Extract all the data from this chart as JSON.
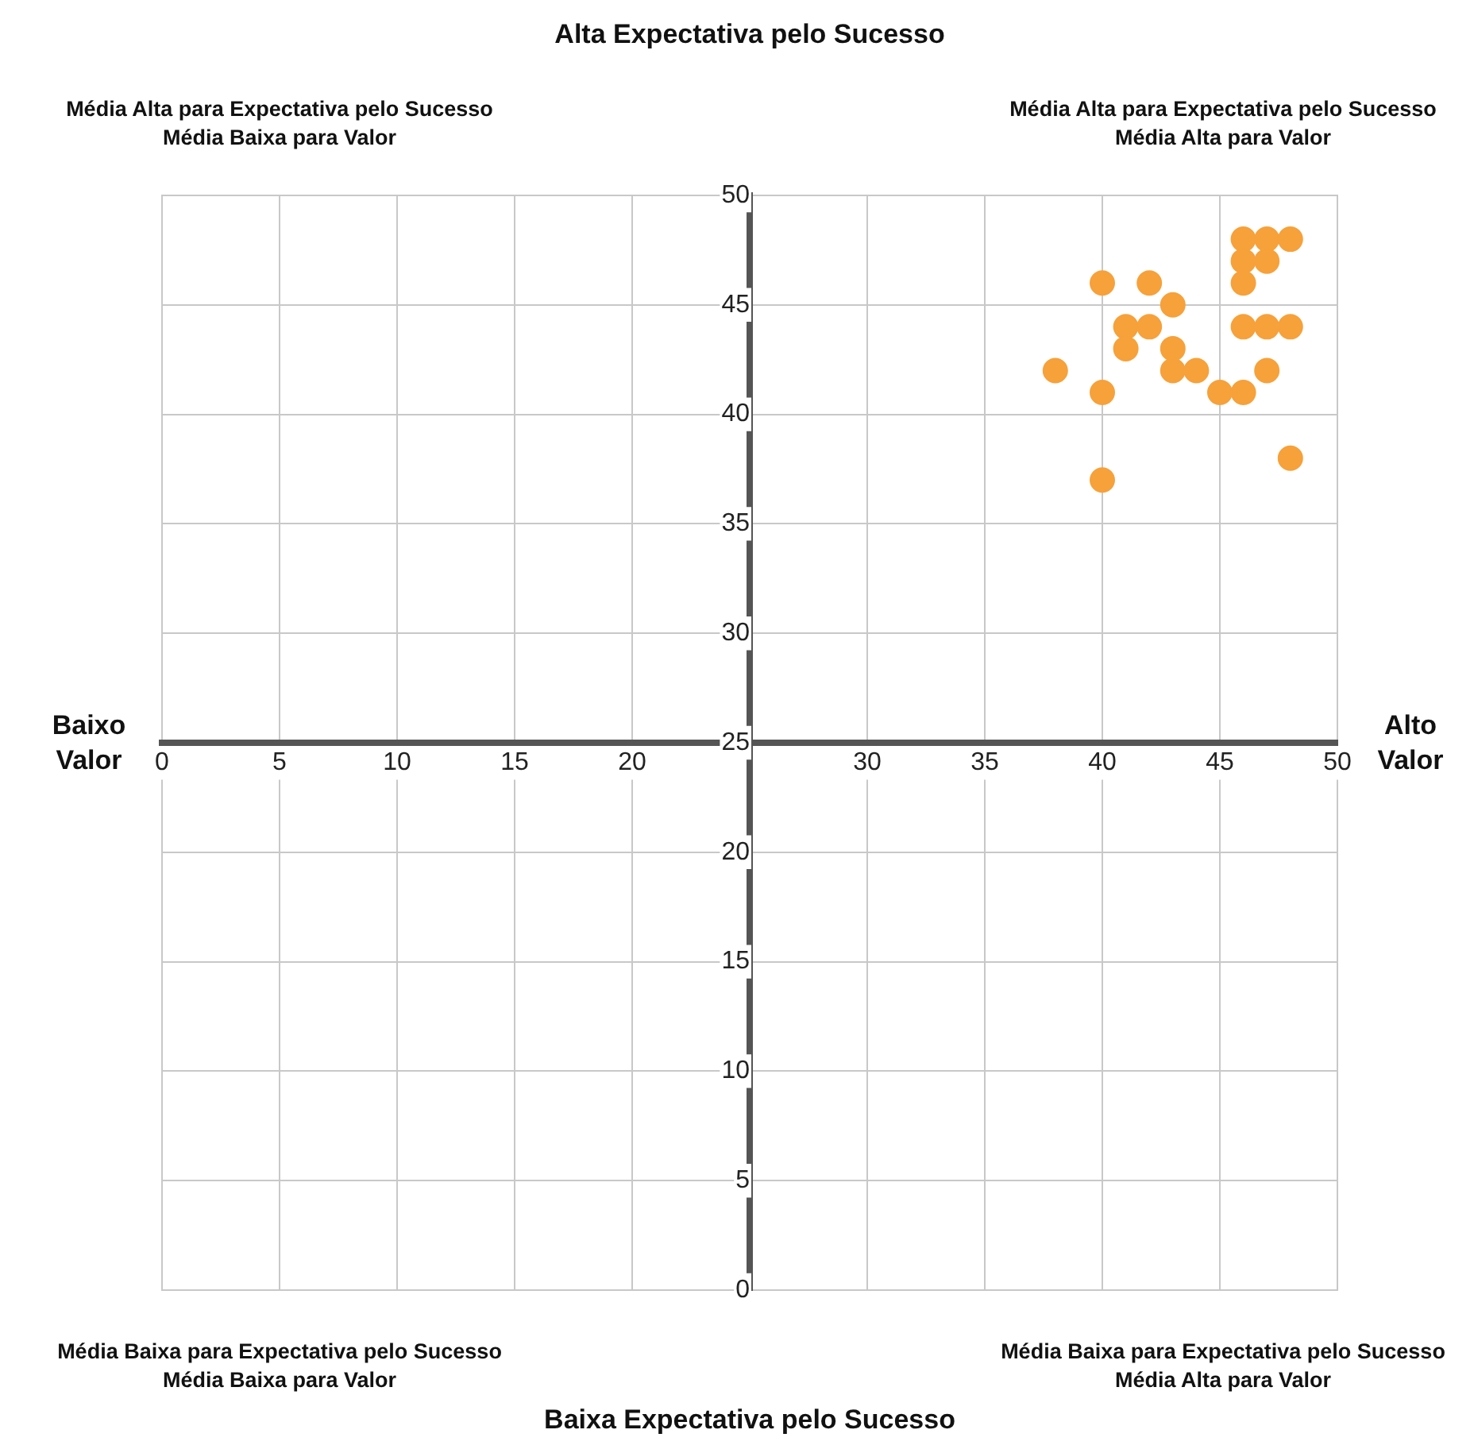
{
  "chart_data": {
    "type": "scatter",
    "title": "Alta Expectativa pelo Sucesso",
    "xlabel": "Baixa Expectativa pelo Sucesso",
    "annotations": [
      "Média Alta para Expectativa pelo Sucesso\nMédia Baixa para Valor",
      "Média Alta para Expectativa pelo Sucesso\nMédia Alta para Valor",
      "Média Baixa para Expectativa pelo Sucesso\nMédia Baixa para Valor",
      "Média Baixa para Expectativa pelo Sucesso\nMédia Alta para Valor",
      "Baixo\nValor",
      "Alto\nValor"
    ],
    "x": [
      38,
      40,
      40,
      40,
      41,
      41,
      42,
      42,
      43,
      43,
      43,
      44,
      45,
      46,
      46,
      46,
      46,
      46,
      47,
      47,
      47,
      47,
      48,
      48,
      48
    ],
    "values": [
      42,
      46,
      41,
      37,
      44,
      43,
      46,
      44,
      45,
      43,
      42,
      42,
      41,
      48,
      47,
      46,
      44,
      41,
      48,
      47,
      44,
      42,
      48,
      44,
      38
    ],
    "color": "#f7a13a",
    "marker": "circle",
    "xlim": [
      0,
      50
    ],
    "xticks": [
      0,
      5,
      10,
      15,
      20,
      {
        "value": 25,
        "label": null
      },
      30,
      35,
      40,
      45,
      50
    ],
    "ylim": [
      0,
      50
    ],
    "yticks": [
      0,
      5,
      10,
      15,
      20,
      25,
      30,
      35,
      40,
      45,
      50
    ],
    "grid": true
  }
}
